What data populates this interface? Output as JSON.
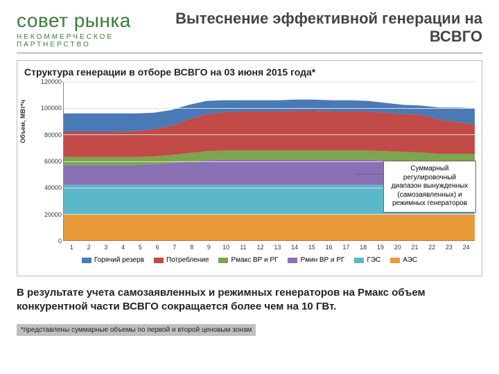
{
  "logo": {
    "main": "совет рынка",
    "sub": "НЕКОММЕРЧЕСКОЕ ПАРТНЕРСТВО"
  },
  "title": "Вытеснение эффективной генерации на ВСВГО",
  "chart": {
    "type": "area",
    "title": "Структура генерации в отборе ВСВГО на 03 июня 2015 года*",
    "ylabel": "Объем, МВт*ч",
    "ylim": [
      0,
      120000
    ],
    "ytick_step": 20000,
    "yticks": [
      "0",
      "20000",
      "40000",
      "60000",
      "80000",
      "100000",
      "120000"
    ],
    "x_categories": [
      "1",
      "2",
      "3",
      "4",
      "5",
      "6",
      "7",
      "8",
      "9",
      "10",
      "11",
      "12",
      "13",
      "14",
      "15",
      "16",
      "17",
      "18",
      "19",
      "20",
      "21",
      "22",
      "23",
      "24"
    ],
    "background_color": "#ffffff",
    "grid_color": "#dddddd",
    "series": [
      {
        "name": "АЭС",
        "color": "#e99b3a",
        "values": [
          20000,
          20000,
          20000,
          20000,
          20000,
          20000,
          20000,
          20000,
          20000,
          20000,
          20000,
          20000,
          20000,
          20000,
          20000,
          20000,
          20000,
          20000,
          20000,
          20000,
          20000,
          20000,
          20000,
          20000
        ]
      },
      {
        "name": "ГЭС",
        "color": "#5bb8c9",
        "values": [
          22000,
          22000,
          22000,
          22000,
          22000,
          22000,
          22000,
          22000,
          22000,
          22000,
          22000,
          22000,
          22000,
          22000,
          22000,
          22000,
          22000,
          22000,
          22000,
          22000,
          22000,
          22000,
          22000,
          22000
        ]
      },
      {
        "name": "Рмин ВР и РГ",
        "color": "#8a71b5",
        "values": [
          15000,
          15000,
          15000,
          15000,
          15000,
          15500,
          16500,
          17500,
          18500,
          19000,
          19000,
          19000,
          19000,
          19000,
          19000,
          19000,
          19000,
          19000,
          18500,
          18000,
          17500,
          17000,
          17000,
          17000
        ]
      },
      {
        "name": "Рмакс ВР и РГ",
        "color": "#7ca64d",
        "values": [
          6000,
          6000,
          6000,
          6000,
          6000,
          6000,
          6000,
          6500,
          7000,
          7000,
          7000,
          7000,
          7000,
          7000,
          7000,
          7000,
          7000,
          7000,
          7000,
          7000,
          7000,
          6500,
          6500,
          6500
        ]
      },
      {
        "name": "Потребление",
        "color": "#c24a47",
        "values": [
          19000,
          19000,
          19000,
          19000,
          19500,
          20500,
          22000,
          25500,
          28000,
          29000,
          29500,
          29500,
          29500,
          30000,
          30000,
          29500,
          29500,
          29500,
          29000,
          28500,
          28500,
          26000,
          24000,
          22000
        ]
      },
      {
        "name": "Горячий резерв",
        "color": "#4a7ab5",
        "values": [
          14000,
          14000,
          14000,
          14000,
          13500,
          12500,
          12000,
          11000,
          10000,
          9000,
          8500,
          8500,
          8500,
          8500,
          8500,
          8500,
          8500,
          8000,
          7500,
          7000,
          7000,
          9000,
          11000,
          12500
        ]
      }
    ],
    "legend_order": [
      "Горячий резерв",
      "Потребление",
      "Рмакс ВР и РГ",
      "Рмин ВР и РГ",
      "ГЭС",
      "АЭС"
    ],
    "callout_text": "Суммарный регулировочный диапазон вынужденных (самозаявленных) и режимных генераторов"
  },
  "conclusion": "В результате учета самозаявленных и режимных генераторов на Рмакс объем конкурентной части ВСВГО сокращается более чем на 10 ГВт.",
  "footnote": "*представлены суммарные объемы по первой и второй ценовым зонам"
}
